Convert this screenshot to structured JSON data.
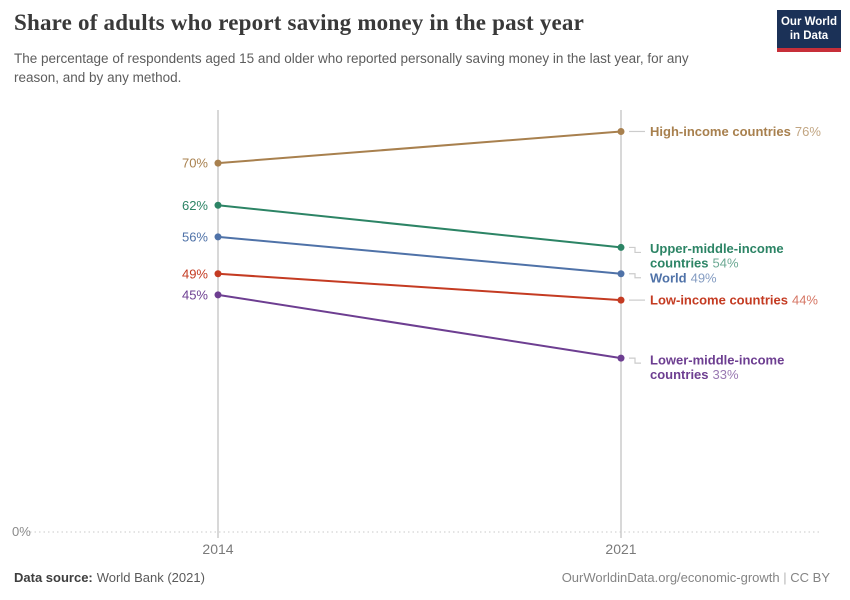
{
  "chart_data": {
    "type": "line",
    "variant": "slope-chart",
    "title": "Share of adults who report saving money in the past year",
    "subtitle": "The percentage of respondents aged 15 and older who reported personally saving money in the last year, for any reason, and by any method.",
    "x": [
      "2014",
      "2021"
    ],
    "series": [
      {
        "name": "High-income countries",
        "name_lines": [
          "High-income countries"
        ],
        "values": [
          70,
          76
        ],
        "color": "#A8804E",
        "label_dy": 0
      },
      {
        "name": "Upper-middle-income countries",
        "name_lines": [
          "Upper-middle-income",
          "countries"
        ],
        "values": [
          62,
          54
        ],
        "color": "#2C8465",
        "label_dy": 1
      },
      {
        "name": "World",
        "name_lines": [
          "World"
        ],
        "values": [
          56,
          49
        ],
        "color": "#4F72A8",
        "label_dy": 4
      },
      {
        "name": "Low-income countries",
        "name_lines": [
          "Low-income countries"
        ],
        "values": [
          49,
          44
        ],
        "color": "#C43B22",
        "label_dy": 0
      },
      {
        "name": "Lower-middle-income countries",
        "name_lines": [
          "Lower-middle-income",
          "countries"
        ],
        "values": [
          45,
          33
        ],
        "color": "#6D3E91",
        "label_dy": 2
      }
    ],
    "ylim": [
      0,
      80
    ],
    "y_zero_label": "0%",
    "xlabel": "",
    "ylabel": "",
    "grid": "dotted-zero-baseline-only",
    "legend_position": "right-inline-labels",
    "axis_color": "#d4d4d4",
    "tick_label_color": "#7a7a7a",
    "connector_color": "#cccccc"
  },
  "logo": {
    "line1": "Our World",
    "line2": "in Data"
  },
  "footer": {
    "source_label": "Data source:",
    "source_value": "World Bank (2021)",
    "link": "OurWorldinData.org/economic-growth",
    "separator": " | ",
    "license": "CC BY"
  }
}
